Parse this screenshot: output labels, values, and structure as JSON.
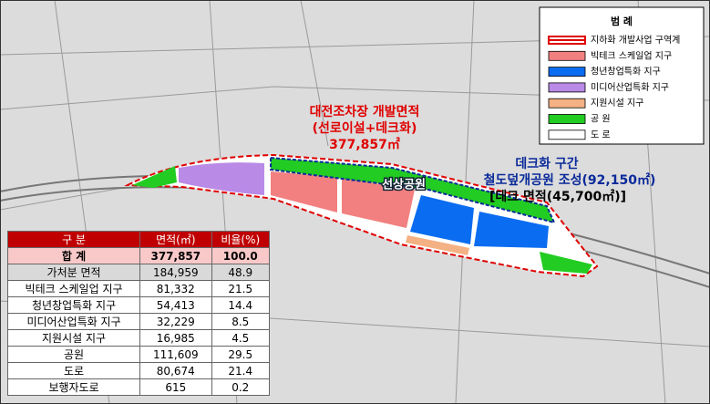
{
  "legend": {
    "title": "범 례",
    "items": [
      {
        "label": "지하화 개발사업 구역계",
        "color": "#e00000"
      },
      {
        "label": "빅테크 스케일업 지구",
        "color": "#f28080"
      },
      {
        "label": "청년창업특화 지구",
        "color": "#0a6cf0"
      },
      {
        "label": "미디어산업특화 지구",
        "color": "#b98ae6"
      },
      {
        "label": "지원시설 지구",
        "color": "#f4b183"
      },
      {
        "label": "공 원",
        "color": "#22cc22"
      },
      {
        "label": "도 로",
        "color": "#ffffff"
      }
    ]
  },
  "annotations": {
    "development_area": [
      "대전조차장 개발면적",
      "(선로이설+데크화)",
      "377,857㎡"
    ],
    "deck_section": [
      "데크화 구간",
      "철도덮개공원 조성(92,150㎡)",
      "[데크 면적(45,700㎡)]"
    ],
    "park_name": "선상공원"
  },
  "table": {
    "header": [
      "구 분",
      "면적(㎡)",
      "비율(%)"
    ],
    "rows": [
      [
        "합 계",
        "377,857",
        "100.0"
      ],
      [
        "가처분 면적",
        "184,959",
        "48.9"
      ],
      [
        "빅테크 스케일업 지구",
        "81,332",
        "21.5"
      ],
      [
        "청년창업특화 지구",
        "54,413",
        "14.4"
      ],
      [
        "미디어산업특화 지구",
        "32,229",
        "8.5"
      ],
      [
        "지원시설 지구",
        "16,985",
        "4.5"
      ],
      [
        "공원",
        "111,609",
        "29.5"
      ],
      [
        "도로",
        "80,674",
        "21.4"
      ],
      [
        "보행자도로",
        "615",
        "0.2"
      ]
    ]
  }
}
